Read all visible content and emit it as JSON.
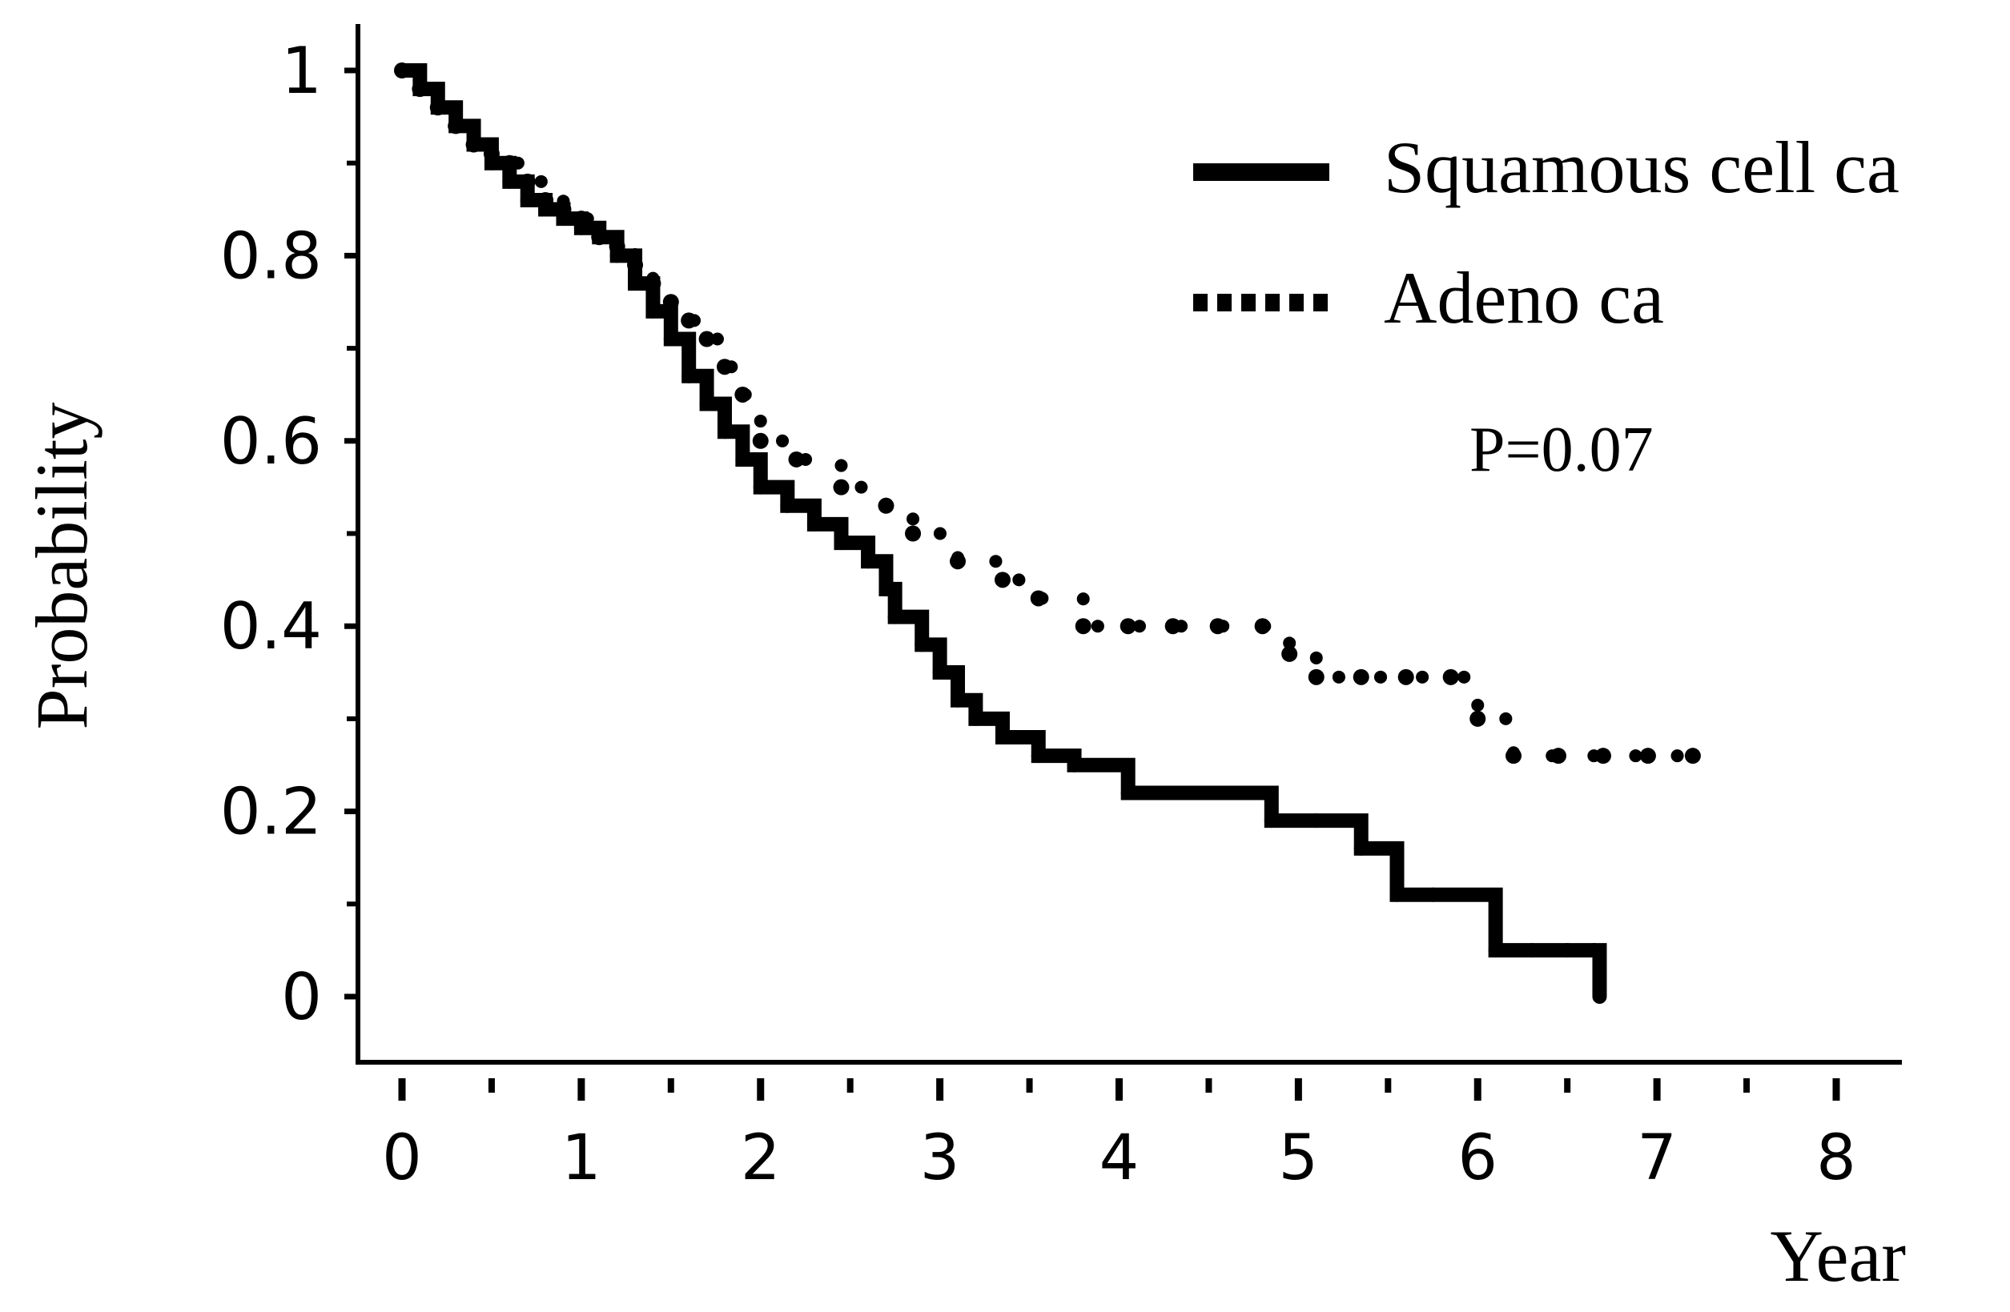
{
  "chart_data": {
    "type": "line",
    "title": "",
    "xlabel": "Year",
    "ylabel": "Probability",
    "xlim": [
      0,
      8
    ],
    "ylim": [
      0,
      1
    ],
    "x_ticks": [
      "0",
      "1",
      "2",
      "3",
      "4",
      "5",
      "6",
      "7",
      "8"
    ],
    "y_ticks": [
      "0",
      "0.2",
      "0.4",
      "0.6",
      "0.8",
      "1"
    ],
    "grid": false,
    "legend_position": "top-right",
    "annotation": "P=0.07",
    "series": [
      {
        "name": "Squamous cell ca",
        "line_style": "solid",
        "color": "#000000",
        "x": [
          0,
          0.1,
          0.2,
          0.3,
          0.4,
          0.5,
          0.6,
          0.7,
          0.8,
          0.9,
          1.0,
          1.1,
          1.2,
          1.3,
          1.4,
          1.5,
          1.6,
          1.7,
          1.8,
          1.9,
          2.0,
          2.15,
          2.3,
          2.45,
          2.6,
          2.7,
          2.75,
          2.9,
          3.0,
          3.1,
          3.2,
          3.35,
          3.55,
          3.75,
          4.05,
          4.5,
          4.85,
          5.1,
          5.35,
          5.55,
          5.75,
          6.1,
          6.3,
          6.5,
          6.65,
          6.68
        ],
        "y": [
          1.0,
          0.98,
          0.96,
          0.94,
          0.92,
          0.9,
          0.88,
          0.86,
          0.85,
          0.84,
          0.83,
          0.82,
          0.8,
          0.77,
          0.74,
          0.71,
          0.67,
          0.64,
          0.61,
          0.58,
          0.55,
          0.53,
          0.51,
          0.49,
          0.47,
          0.44,
          0.41,
          0.38,
          0.35,
          0.32,
          0.3,
          0.28,
          0.26,
          0.25,
          0.22,
          0.22,
          0.19,
          0.19,
          0.16,
          0.11,
          0.11,
          0.05,
          0.05,
          0.05,
          0.05,
          0.0
        ]
      },
      {
        "name": "Adeno ca",
        "line_style": "dotted",
        "color": "#000000",
        "x": [
          0,
          0.1,
          0.2,
          0.3,
          0.4,
          0.5,
          0.6,
          0.7,
          0.8,
          0.9,
          1.0,
          1.1,
          1.2,
          1.3,
          1.4,
          1.5,
          1.6,
          1.7,
          1.8,
          1.9,
          2.0,
          2.2,
          2.45,
          2.7,
          2.85,
          3.1,
          3.35,
          3.55,
          3.8,
          4.05,
          4.3,
          4.55,
          4.8,
          4.95,
          5.1,
          5.35,
          5.6,
          5.85,
          6.0,
          6.2,
          6.45,
          6.7,
          6.95,
          7.2
        ],
        "y": [
          1.0,
          0.98,
          0.96,
          0.94,
          0.92,
          0.91,
          0.9,
          0.88,
          0.86,
          0.85,
          0.84,
          0.82,
          0.81,
          0.79,
          0.77,
          0.75,
          0.73,
          0.71,
          0.68,
          0.65,
          0.6,
          0.58,
          0.55,
          0.53,
          0.5,
          0.47,
          0.45,
          0.43,
          0.4,
          0.4,
          0.4,
          0.4,
          0.4,
          0.37,
          0.345,
          0.345,
          0.345,
          0.345,
          0.3,
          0.26,
          0.26,
          0.26,
          0.26,
          0.26
        ]
      }
    ]
  }
}
